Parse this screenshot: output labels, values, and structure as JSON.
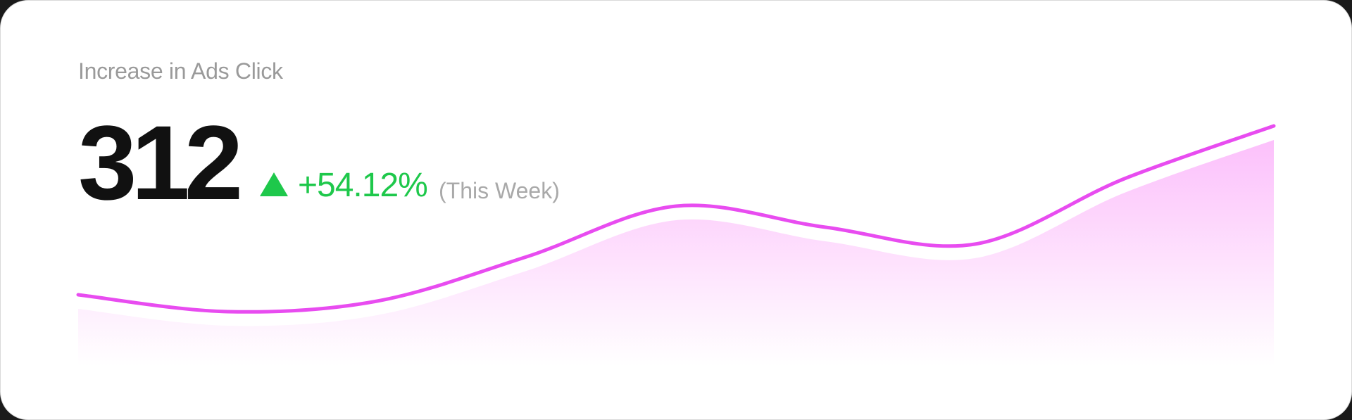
{
  "card": {
    "title": "Increase in Ads Click",
    "value": "312",
    "trend_icon": "triangle-up-icon",
    "change": "+54.12%",
    "period": "(This Week)"
  },
  "colors": {
    "accent_line": "#e84cf0",
    "area_fill": "#fcc0fb",
    "positive": "#1ec84b",
    "title_text": "#9a9a9a",
    "value_text": "#111111"
  },
  "chart_data": {
    "type": "area",
    "title": "",
    "xlabel": "",
    "ylabel": "",
    "x": [
      0,
      1,
      2,
      3,
      4,
      5,
      6,
      7,
      8
    ],
    "series": [
      {
        "values": [
          20,
          12,
          17,
          38,
          62,
          52,
          44,
          75,
          100
        ]
      }
    ],
    "ylim": [
      0,
      100
    ],
    "grid": false,
    "legend": "none"
  }
}
